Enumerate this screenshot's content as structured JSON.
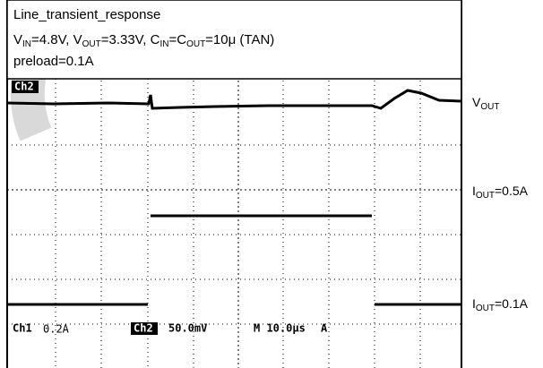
{
  "header": {
    "title": "Line_transient_response",
    "line2": [
      "V",
      "IN",
      "=4.8V, V",
      "OUT",
      "=3.33V, C",
      "IN",
      "=C",
      "OUT",
      "=10μ (TAN)"
    ],
    "line3": "preload=0.1A"
  },
  "labels": {
    "vout": [
      "V",
      "OUT"
    ],
    "iout_high": [
      "I",
      "OUT",
      "=0.5A"
    ],
    "iout_low": [
      "I",
      "OUT",
      "=0.1A"
    ]
  },
  "scope": {
    "ch2_marker": "Ch2",
    "ch1": "Ch1",
    "ch1_scale": "0.2A",
    "ch2": "Ch2",
    "ch2_scale": "50.0mV",
    "time_scale": "M 10.0μs",
    "trigger": "A"
  }
}
